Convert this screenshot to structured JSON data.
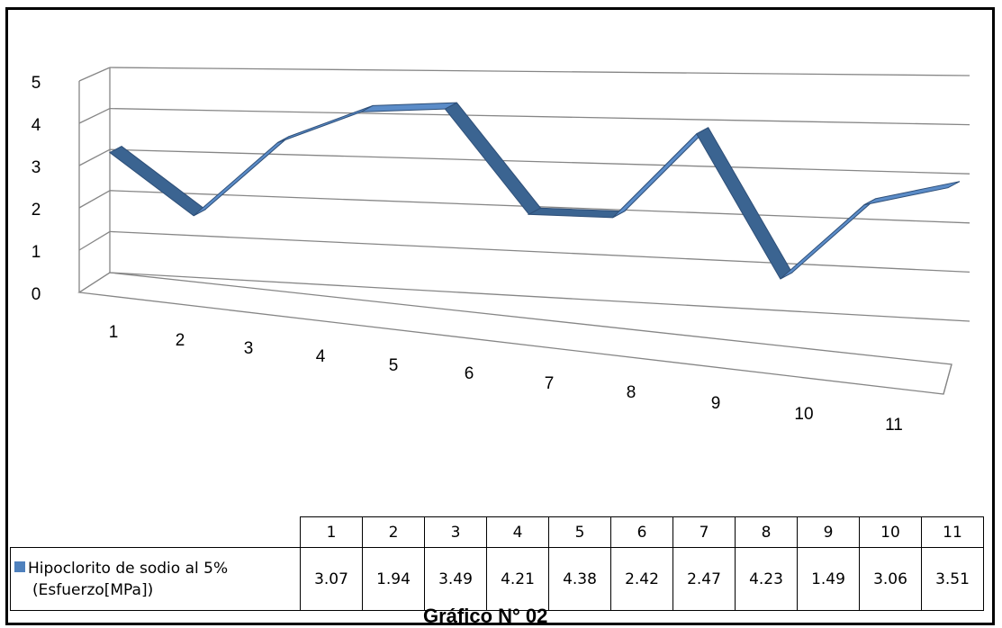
{
  "chart_data": {
    "type": "line",
    "style": "3d-ribbon",
    "categories": [
      "1",
      "2",
      "3",
      "4",
      "5",
      "6",
      "7",
      "8",
      "9",
      "10",
      "11"
    ],
    "series": [
      {
        "name": "Hipoclorito de sodio al 5% (Esfuerzo[MPa])",
        "values": [
          3.07,
          1.94,
          3.49,
          4.21,
          4.38,
          2.42,
          2.47,
          4.23,
          1.49,
          3.06,
          3.51
        ],
        "color": "#4F81BD"
      }
    ],
    "y_ticks": [
      "0",
      "1",
      "2",
      "3",
      "4",
      "5"
    ],
    "ylim": [
      0,
      5
    ],
    "grid": true,
    "legend": "data-table"
  },
  "table": {
    "legend_line1": "Hipoclorito de sodio al 5%",
    "legend_line2": "(Esfuerzo[MPa])",
    "headers": [
      "1",
      "2",
      "3",
      "4",
      "5",
      "6",
      "7",
      "8",
      "9",
      "10",
      "11"
    ],
    "values": [
      "3.07",
      "1.94",
      "3.49",
      "4.21",
      "4.38",
      "2.42",
      "2.47",
      "4.23",
      "1.49",
      "3.06",
      "3.51"
    ]
  },
  "caption": "Gráfico N° 02"
}
